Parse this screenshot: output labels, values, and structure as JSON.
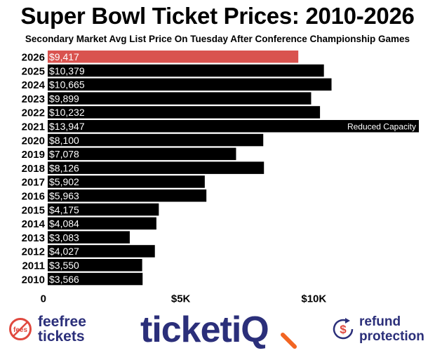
{
  "chart_data": {
    "type": "bar",
    "orientation": "horizontal",
    "title": "Super Bowl Ticket Prices: 2010-2026",
    "subtitle": "Secondary Market Avg List Price On Tuesday After Conference Championship Games",
    "categories": [
      "2026",
      "2025",
      "2024",
      "2023",
      "2022",
      "2021",
      "2020",
      "2019",
      "2018",
      "2017",
      "2016",
      "2015",
      "2014",
      "2013",
      "2012",
      "2011",
      "2010"
    ],
    "values": [
      9417,
      10379,
      10665,
      9899,
      10232,
      13947,
      8100,
      7078,
      8126,
      5902,
      5963,
      4175,
      4084,
      3083,
      4027,
      3550,
      3566
    ],
    "value_labels": [
      "$9,417",
      "$10,379",
      "$10,665",
      "$9,899",
      "$10,232",
      "$13,947",
      "$8,100",
      "$7,078",
      "$8,126",
      "$5,902",
      "$5,963",
      "$4,175",
      "$4,084",
      "$3,083",
      "$4,027",
      "$3,550",
      "$3,566"
    ],
    "highlight_index": 0,
    "annotations": [
      {
        "category": "2021",
        "text": "Reduced Capacity"
      }
    ],
    "xticks": [
      {
        "value": 0,
        "label": "0"
      },
      {
        "value": 5000,
        "label": "$5K"
      },
      {
        "value": 10000,
        "label": "$10K"
      }
    ],
    "xlim": [
      0,
      14000
    ],
    "colors": {
      "bar": "#000000",
      "highlight": "#d9534f",
      "label_text": "#ffffff"
    }
  },
  "logos": {
    "left_badge": "fees",
    "left_line1": "feefree",
    "left_line2": "tickets",
    "center_main": "ticket",
    "center_accent": "iQ",
    "right_symbol": "$",
    "right_line1": "refund",
    "right_line2": "protection"
  },
  "colors": {
    "brand_navy": "#2b2f7a",
    "brand_red": "#e0483e",
    "brand_orange": "#f26522"
  }
}
